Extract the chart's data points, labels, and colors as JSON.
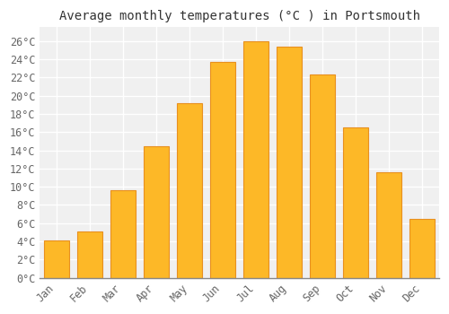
{
  "title": "Average monthly temperatures (°C ) in Portsmouth",
  "months": [
    "Jan",
    "Feb",
    "Mar",
    "Apr",
    "May",
    "Jun",
    "Jul",
    "Aug",
    "Sep",
    "Oct",
    "Nov",
    "Dec"
  ],
  "values": [
    4.1,
    5.1,
    9.6,
    14.4,
    19.2,
    23.7,
    26.0,
    25.4,
    22.3,
    16.5,
    11.6,
    6.5
  ],
  "bar_color": "#FDB827",
  "bar_edge_color": "#E89020",
  "figure_bg": "#FFFFFF",
  "plot_bg": "#F0F0F0",
  "grid_color": "#FFFFFF",
  "title_color": "#333333",
  "tick_color": "#666666",
  "ylim": [
    0,
    27.5
  ],
  "yticks": [
    0,
    2,
    4,
    6,
    8,
    10,
    12,
    14,
    16,
    18,
    20,
    22,
    24,
    26
  ],
  "title_fontsize": 10,
  "tick_fontsize": 8.5,
  "bar_width": 0.75
}
